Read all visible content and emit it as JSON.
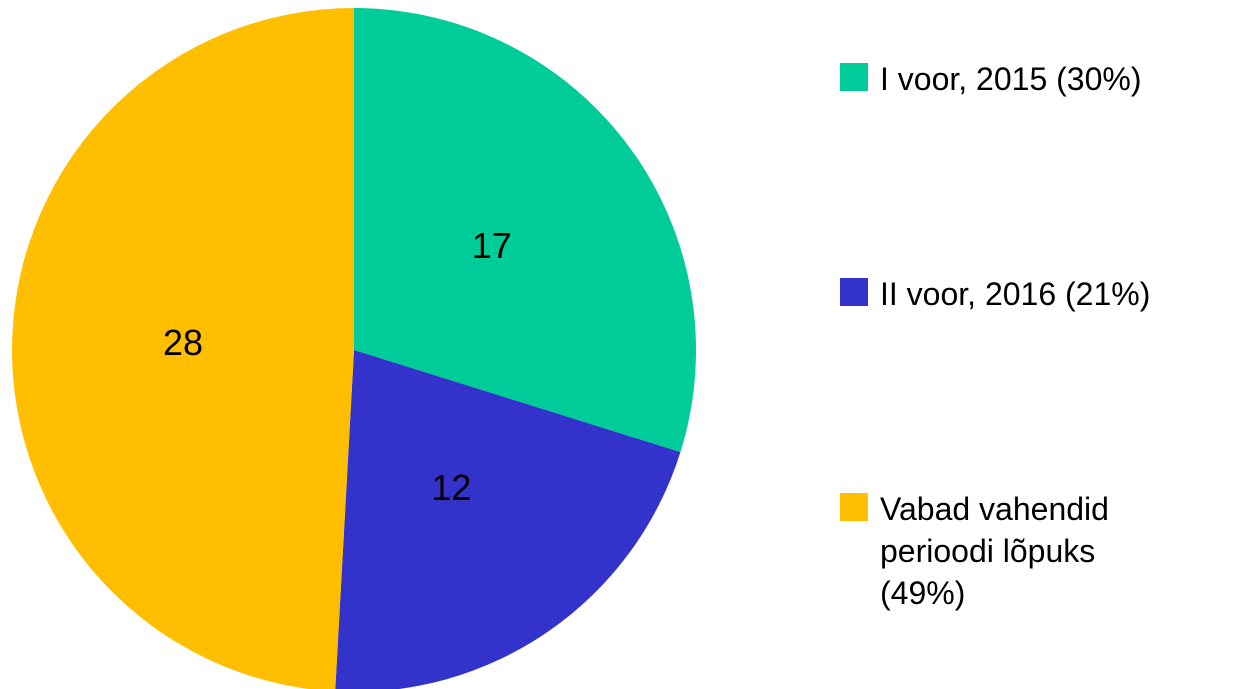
{
  "chart_data": {
    "type": "pie",
    "categories": [
      "I voor, 2015 (30%)",
      "II voor, 2016 (21%)",
      "Vabad vahendid perioodi lõpuks (49%)"
    ],
    "values": [
      17,
      12,
      28
    ],
    "colors": [
      "#00cc99",
      "#3333cc",
      "#ffbf00"
    ],
    "legend": "right"
  }
}
